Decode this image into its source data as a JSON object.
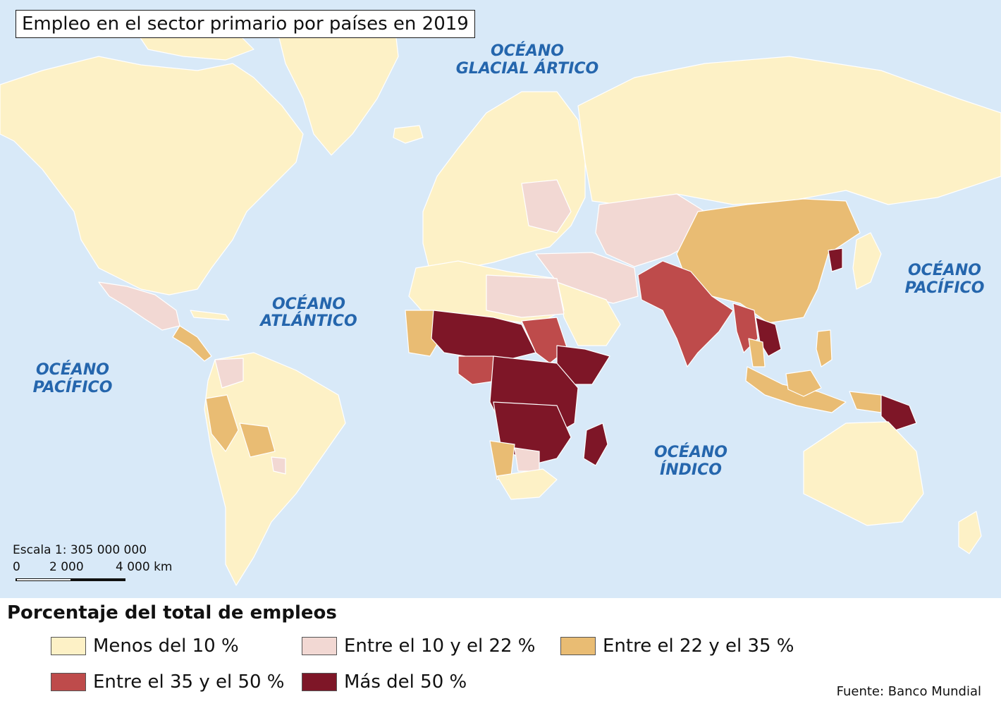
{
  "title": "Empleo en el sector primario por países en 2019",
  "oceans": {
    "arctic_line1": "OCÉANO",
    "arctic_line2": "GLACIAL ÁRTICO",
    "atlantic_line1": "OCÉANO",
    "atlantic_line2": "ATLÁNTICO",
    "pacific_east_line1": "OCÉANO",
    "pacific_east_line2": "PACÍFICO",
    "pacific_west_line1": "OCÉANO",
    "pacific_west_line2": "PACÍFICO",
    "indian_line1": "OCÉANO",
    "indian_line2": "ÍNDICO"
  },
  "scale": {
    "label": "Escala 1: 305 000 000",
    "tick_0": "0",
    "tick_1": "2 000",
    "tick_2": "4 000 km"
  },
  "legend": {
    "title": "Porcentaje del total de empleos",
    "items": [
      {
        "label": "Menos del 10 %",
        "color": "#fdf1c6"
      },
      {
        "label": "Entre el 10 y el 22 %",
        "color": "#f2d8d3"
      },
      {
        "label": "Entre el 22 y el 35 %",
        "color": "#e9bc73"
      },
      {
        "label": "Entre el 35 y el 50 %",
        "color": "#be4b4b"
      },
      {
        "label": "Más del 50 %",
        "color": "#7e1627"
      }
    ]
  },
  "source": "Fuente: Banco Mundial",
  "colors": {
    "ocean": "#d8e9f8",
    "ocean_label": "#2566ad",
    "border": "#ffffff"
  }
}
